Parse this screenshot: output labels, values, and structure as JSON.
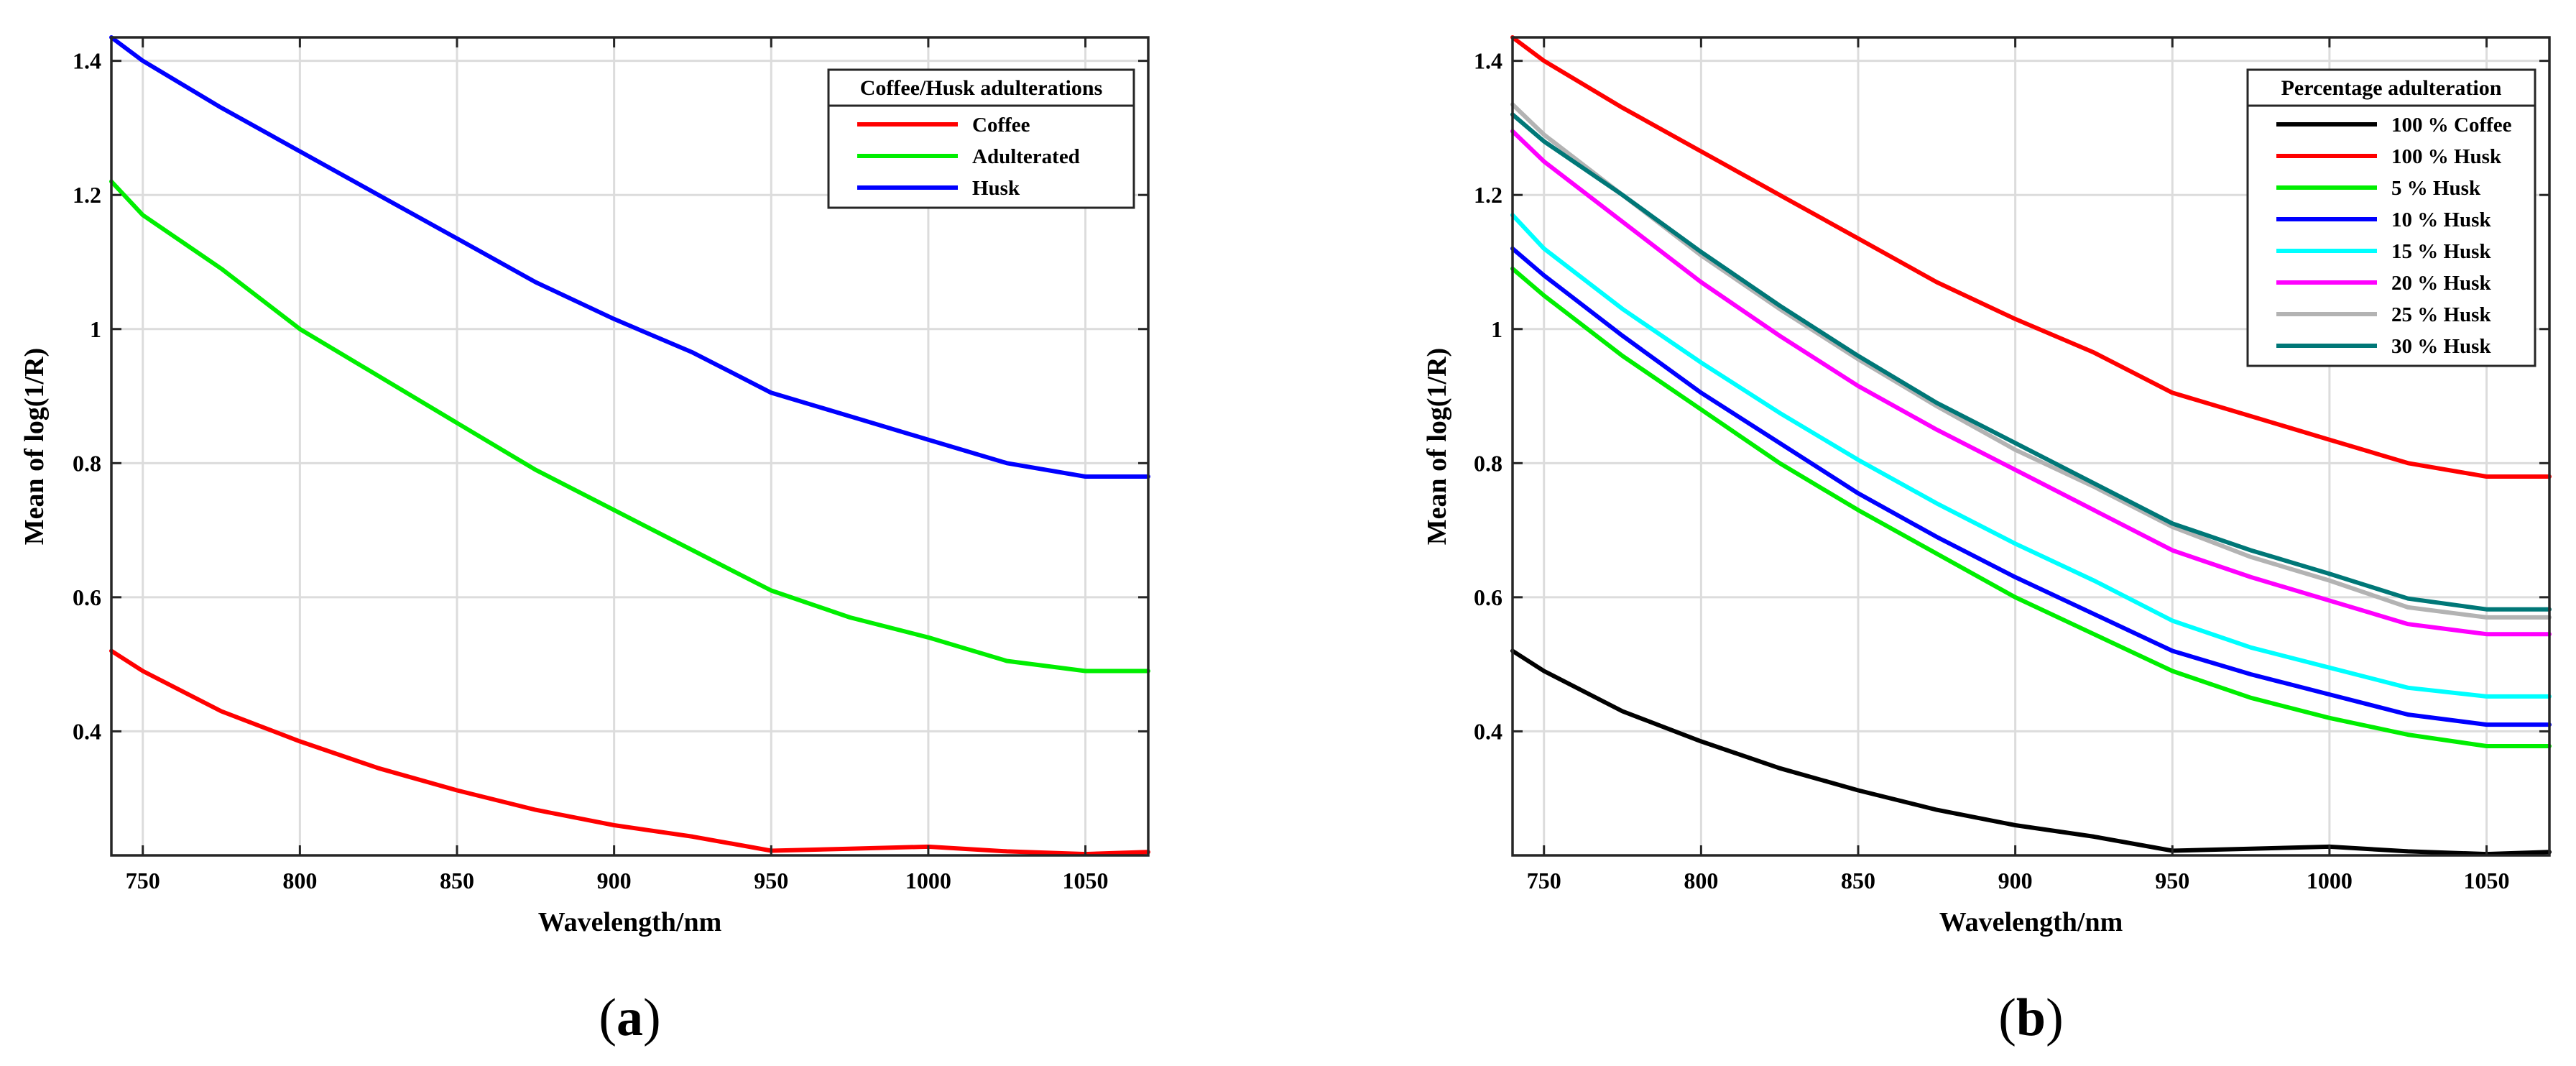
{
  "chart_data": [
    {
      "type": "line",
      "panel_label_open": "(",
      "panel_label_letter": "a",
      "panel_label_close": ")",
      "title": "",
      "xlabel": "Wavelength/nm",
      "ylabel": "Mean of log(1/R)",
      "xlim": [
        740,
        1070
      ],
      "ylim": [
        0.215,
        1.435
      ],
      "xticks": [
        750,
        800,
        850,
        900,
        950,
        1000,
        1050
      ],
      "yticks": [
        0.4,
        0.6,
        0.8,
        1,
        1.2,
        1.4
      ],
      "ytick_labels": [
        "0.4",
        "0.6",
        "0.8",
        "1",
        "1.2",
        "1.4"
      ],
      "grid": true,
      "legend_title": "Coffee/Husk adulterations",
      "legend_position": "top-right",
      "x": [
        740,
        750,
        775,
        800,
        825,
        850,
        875,
        900,
        925,
        950,
        975,
        1000,
        1025,
        1050,
        1070
      ],
      "series": [
        {
          "name": "Coffee",
          "color": "#ff0000",
          "values": [
            0.52,
            0.49,
            0.43,
            0.385,
            0.345,
            0.312,
            0.283,
            0.26,
            0.243,
            0.222,
            0.225,
            0.228,
            0.221,
            0.217,
            0.22
          ]
        },
        {
          "name": "Adulterated",
          "color": "#00ee00",
          "values": [
            1.22,
            1.17,
            1.09,
            1.0,
            0.93,
            0.86,
            0.79,
            0.73,
            0.67,
            0.61,
            0.57,
            0.54,
            0.505,
            0.49,
            0.49
          ]
        },
        {
          "name": "Husk",
          "color": "#0000ff",
          "values": [
            1.435,
            1.4,
            1.33,
            1.265,
            1.2,
            1.135,
            1.07,
            1.015,
            0.965,
            0.905,
            0.87,
            0.835,
            0.8,
            0.78,
            0.78
          ]
        }
      ]
    },
    {
      "type": "line",
      "panel_label_open": "(",
      "panel_label_letter": "b",
      "panel_label_close": ")",
      "title": "",
      "xlabel": "Wavelength/nm",
      "ylabel": "Mean of log(1/R)",
      "xlim": [
        740,
        1070
      ],
      "ylim": [
        0.215,
        1.435
      ],
      "xticks": [
        750,
        800,
        850,
        900,
        950,
        1000,
        1050
      ],
      "yticks": [
        0.4,
        0.6,
        0.8,
        1,
        1.2,
        1.4
      ],
      "ytick_labels": [
        "0.4",
        "0.6",
        "0.8",
        "1",
        "1.2",
        "1.4"
      ],
      "grid": true,
      "legend_title": "Percentage adulteration",
      "legend_position": "top-right",
      "x": [
        740,
        750,
        775,
        800,
        825,
        850,
        875,
        900,
        925,
        950,
        975,
        1000,
        1025,
        1050,
        1070
      ],
      "series": [
        {
          "name": "100 % Coffee",
          "color": "#000000",
          "values": [
            0.52,
            0.49,
            0.43,
            0.385,
            0.345,
            0.312,
            0.283,
            0.26,
            0.243,
            0.222,
            0.225,
            0.228,
            0.221,
            0.217,
            0.22
          ]
        },
        {
          "name": "100 % Husk",
          "color": "#ff0000",
          "values": [
            1.435,
            1.4,
            1.33,
            1.265,
            1.2,
            1.135,
            1.07,
            1.015,
            0.965,
            0.905,
            0.87,
            0.835,
            0.8,
            0.78,
            0.78
          ]
        },
        {
          "name": "5 % Husk",
          "color": "#00ee00",
          "values": [
            1.09,
            1.05,
            0.96,
            0.88,
            0.8,
            0.73,
            0.665,
            0.6,
            0.545,
            0.49,
            0.45,
            0.42,
            0.395,
            0.378,
            0.378
          ]
        },
        {
          "name": "10 % Husk",
          "color": "#0000ff",
          "values": [
            1.12,
            1.08,
            0.99,
            0.905,
            0.83,
            0.755,
            0.69,
            0.63,
            0.575,
            0.52,
            0.485,
            0.455,
            0.425,
            0.41,
            0.41
          ]
        },
        {
          "name": "15 % Husk",
          "color": "#00ffff",
          "values": [
            1.17,
            1.12,
            1.03,
            0.95,
            0.875,
            0.805,
            0.74,
            0.68,
            0.625,
            0.565,
            0.525,
            0.495,
            0.465,
            0.452,
            0.452
          ]
        },
        {
          "name": "20 % Husk",
          "color": "#ff00ff",
          "values": [
            1.295,
            1.25,
            1.16,
            1.07,
            0.99,
            0.915,
            0.85,
            0.79,
            0.73,
            0.67,
            0.63,
            0.595,
            0.56,
            0.545,
            0.545
          ]
        },
        {
          "name": "25 % Husk",
          "color": "#b3b3b3",
          "values": [
            1.335,
            1.29,
            1.2,
            1.11,
            1.03,
            0.955,
            0.885,
            0.82,
            0.765,
            0.705,
            0.66,
            0.625,
            0.585,
            0.57,
            0.57
          ]
        },
        {
          "name": "30 % Husk",
          "color": "#007777",
          "values": [
            1.32,
            1.28,
            1.2,
            1.115,
            1.035,
            0.96,
            0.89,
            0.83,
            0.77,
            0.71,
            0.67,
            0.635,
            0.598,
            0.582,
            0.582
          ]
        }
      ]
    }
  ]
}
